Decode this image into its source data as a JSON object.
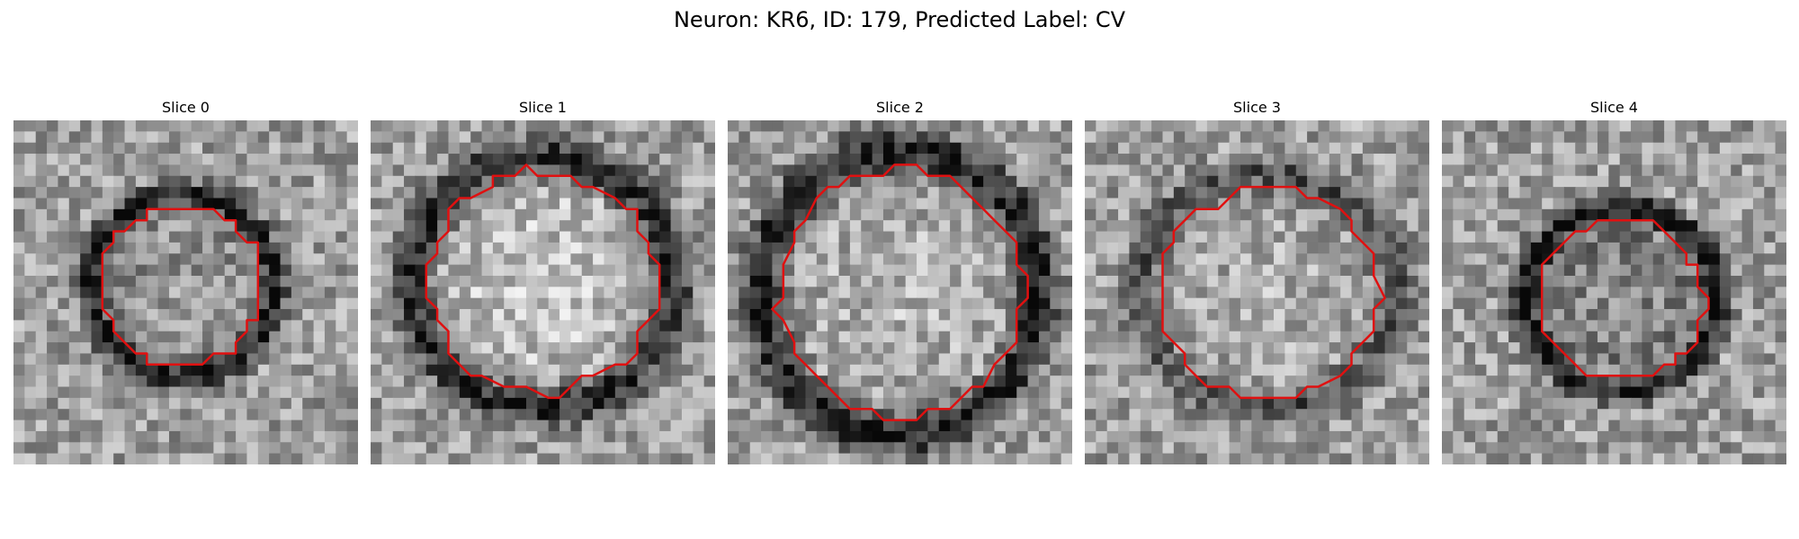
{
  "figure": {
    "title": "Neuron: KR6, ID: 179, Predicted Label: CV"
  },
  "panels": [
    {
      "title": "Slice 0",
      "seed": 11,
      "center": [
        0.49,
        0.48
      ],
      "radius": [
        0.23,
        0.23
      ],
      "ring_strength": 0.55,
      "inner_brightness": 0.62
    },
    {
      "title": "Slice 1",
      "seed": 23,
      "center": [
        0.5,
        0.47
      ],
      "radius": [
        0.33,
        0.32
      ],
      "ring_strength": 0.45,
      "inner_brightness": 0.78
    },
    {
      "title": "Slice 2",
      "seed": 37,
      "center": [
        0.5,
        0.5
      ],
      "radius": [
        0.35,
        0.36
      ],
      "ring_strength": 0.5,
      "inner_brightness": 0.72
    },
    {
      "title": "Slice 3",
      "seed": 51,
      "center": [
        0.53,
        0.5
      ],
      "radius": [
        0.32,
        0.3
      ],
      "ring_strength": 0.3,
      "inner_brightness": 0.7
    },
    {
      "title": "Slice 4",
      "seed": 67,
      "center": [
        0.52,
        0.52
      ],
      "radius": [
        0.24,
        0.23
      ],
      "ring_strength": 0.55,
      "inner_brightness": 0.55
    }
  ],
  "colors": {
    "contour": "#e01010",
    "background": "#ffffff"
  }
}
